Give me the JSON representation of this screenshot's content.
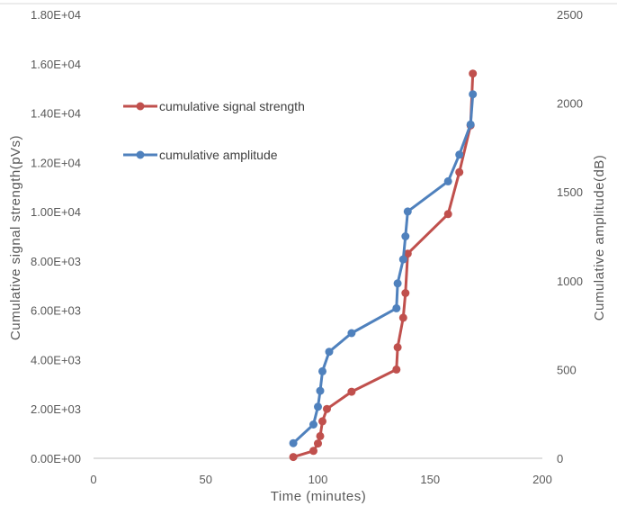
{
  "chart_data": {
    "type": "line",
    "xlabel": "Time (minutes)",
    "ylabel_left": "Cumulative signal strength(pVs)",
    "ylabel_right": "Cumulative amplitude(dB)",
    "xlim": [
      0,
      200
    ],
    "ylim_left": [
      0,
      18000
    ],
    "ylim_right": [
      0,
      2500
    ],
    "x_ticks": [
      0,
      50,
      100,
      150,
      200
    ],
    "y_left_ticks": [
      0,
      2000,
      4000,
      6000,
      8000,
      10000,
      12000,
      14000,
      16000,
      18000
    ],
    "y_left_tick_labels": [
      "0.00E+00",
      "2.00E+03",
      "4.00E+03",
      "6.00E+03",
      "8.00E+03",
      "1.00E+04",
      "1.20E+04",
      "1.40E+04",
      "1.60E+04",
      "1.80E+04"
    ],
    "y_right_ticks": [
      0,
      500,
      1000,
      1500,
      2000,
      2500
    ],
    "legend_position": "upper-left inside plot",
    "grid": false,
    "series": [
      {
        "name": "cumulative signal strength",
        "axis": "left",
        "color": "#c0504d",
        "points": [
          [
            89,
            50
          ],
          [
            98,
            300
          ],
          [
            100,
            600
          ],
          [
            101,
            900
          ],
          [
            102,
            1500
          ],
          [
            104,
            2000
          ],
          [
            115,
            2700
          ],
          [
            135,
            3600
          ],
          [
            135.5,
            4500
          ],
          [
            138,
            5700
          ],
          [
            139,
            6700
          ],
          [
            140,
            8300
          ],
          [
            158,
            9900
          ],
          [
            163,
            11600
          ],
          [
            168,
            13500
          ],
          [
            169,
            15600
          ]
        ]
      },
      {
        "name": "cumulative amplitude",
        "axis": "right",
        "color": "#4f81bd",
        "points": [
          [
            89,
            85
          ],
          [
            98,
            190
          ],
          [
            100,
            290
          ],
          [
            101,
            380
          ],
          [
            102,
            490
          ],
          [
            105,
            600
          ],
          [
            115,
            705
          ],
          [
            135,
            845
          ],
          [
            135.5,
            985
          ],
          [
            138,
            1120
          ],
          [
            139,
            1250
          ],
          [
            140,
            1390
          ],
          [
            158,
            1560
          ],
          [
            163,
            1710
          ],
          [
            168,
            1880
          ],
          [
            169,
            2050
          ]
        ]
      }
    ]
  }
}
